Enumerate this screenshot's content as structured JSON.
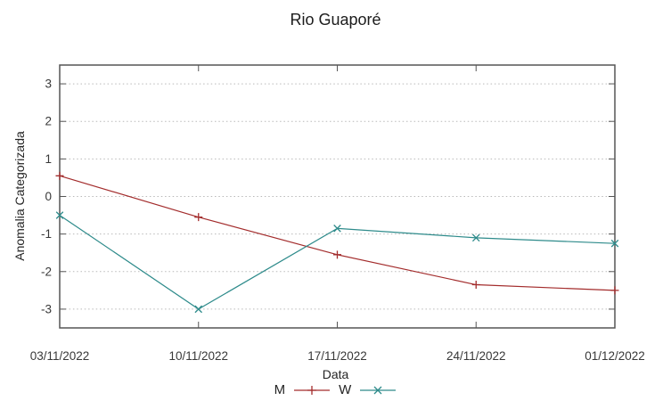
{
  "chart_data": {
    "type": "line",
    "title": "Rio Guaporé",
    "xlabel": "Data",
    "ylabel": "Anomalia Categorizada",
    "x_tick_labels": [
      "03/11/2022",
      "10/11/2022",
      "17/11/2022",
      "24/11/2022",
      "01/12/2022"
    ],
    "y_ticks": [
      3,
      2,
      1,
      0,
      -1,
      -2,
      -3
    ],
    "ylim": [
      -3.5,
      3.5
    ],
    "grid": "horizontal-dotted",
    "legend_position": "bottom-center",
    "border_color": "#555555",
    "grid_color": "#b9b9b9",
    "tick_label_color": "#383838",
    "series": [
      {
        "name": "M",
        "marker": "plus",
        "color": "#a32c2c",
        "values": [
          0.55,
          -0.55,
          -1.55,
          -2.35,
          -2.5
        ]
      },
      {
        "name": "W",
        "marker": "cross",
        "color": "#2e8b8b",
        "values": [
          -0.5,
          -3.0,
          -0.85,
          -1.1,
          -1.25
        ]
      }
    ]
  }
}
